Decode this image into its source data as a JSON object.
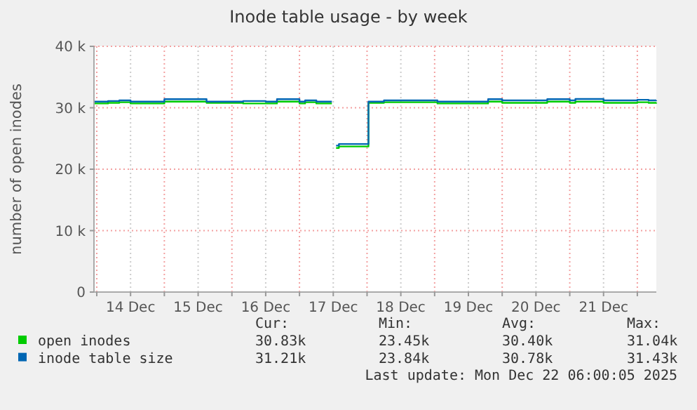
{
  "chart_data": {
    "type": "step",
    "title": "Inode table usage - by week",
    "ylabel": "number of open inodes",
    "x": [
      "2025-12-13T23:00",
      "2025-12-14T04:00",
      "2025-12-14T08:00",
      "2025-12-14T12:00",
      "2025-12-14T18:00",
      "2025-12-15T00:00",
      "2025-12-15T12:00",
      "2025-12-15T15:00",
      "2025-12-16T04:00",
      "2025-12-16T12:00",
      "2025-12-16T16:00",
      "2025-12-17T00:00",
      "2025-12-17T02:00",
      "2025-12-17T06:00",
      "2025-12-17T11:30",
      "2025-12-17T12:30",
      "2025-12-17T13:00",
      "2025-12-17T14:00",
      "2025-12-17T23:30",
      "2025-12-18T00:30",
      "2025-12-18T06:00",
      "2025-12-19T00:00",
      "2025-12-19T01:00",
      "2025-12-19T19:00",
      "2025-12-20T00:00",
      "2025-12-20T16:00",
      "2025-12-21T00:00",
      "2025-12-21T02:00",
      "2025-12-21T12:00",
      "2025-12-22T00:00",
      "2025-12-22T04:00",
      "2025-12-22T06:45"
    ],
    "series": [
      {
        "name": "open inodes",
        "color": "#00cc00",
        "values": [
          30.7,
          30.8,
          30.9,
          30.7,
          30.7,
          31.0,
          31.0,
          30.8,
          30.7,
          30.7,
          31.0,
          30.7,
          30.9,
          30.7,
          30.7,
          null,
          23.45,
          23.7,
          23.7,
          30.8,
          30.9,
          30.9,
          30.7,
          31.0,
          30.8,
          31.0,
          30.8,
          31.0,
          30.8,
          30.9,
          30.8,
          30.83
        ]
      },
      {
        "name": "inode table size",
        "color": "#0066b3",
        "values": [
          31.0,
          31.1,
          31.2,
          31.0,
          31.0,
          31.4,
          31.4,
          31.0,
          31.1,
          31.0,
          31.4,
          31.0,
          31.2,
          31.0,
          31.0,
          null,
          23.84,
          24.1,
          24.1,
          31.0,
          31.2,
          31.2,
          31.0,
          31.4,
          31.2,
          31.4,
          31.2,
          31.43,
          31.2,
          31.3,
          31.2,
          31.21
        ]
      }
    ],
    "xlim": [
      "2025-12-13T23:00",
      "2025-12-22T06:45"
    ],
    "xticks": [
      {
        "value": "2025-12-14T00:00",
        "label": null
      },
      {
        "value": "2025-12-14T12:00",
        "label": "14 Dec"
      },
      {
        "value": "2025-12-15T00:00",
        "label": null
      },
      {
        "value": "2025-12-15T12:00",
        "label": "15 Dec"
      },
      {
        "value": "2025-12-16T00:00",
        "label": null
      },
      {
        "value": "2025-12-16T12:00",
        "label": "16 Dec"
      },
      {
        "value": "2025-12-17T00:00",
        "label": null
      },
      {
        "value": "2025-12-17T12:00",
        "label": "17 Dec"
      },
      {
        "value": "2025-12-18T00:00",
        "label": null
      },
      {
        "value": "2025-12-18T12:00",
        "label": "18 Dec"
      },
      {
        "value": "2025-12-19T00:00",
        "label": null
      },
      {
        "value": "2025-12-19T12:00",
        "label": "19 Dec"
      },
      {
        "value": "2025-12-20T00:00",
        "label": null
      },
      {
        "value": "2025-12-20T12:00",
        "label": "20 Dec"
      },
      {
        "value": "2025-12-21T00:00",
        "label": null
      },
      {
        "value": "2025-12-21T12:00",
        "label": "21 Dec"
      },
      {
        "value": "2025-12-22T00:00",
        "label": null
      }
    ],
    "ylim": [
      0,
      40
    ],
    "yticks": [
      {
        "value": 0,
        "label": "0"
      },
      {
        "value": 10,
        "label": "10 k"
      },
      {
        "value": 20,
        "label": "20 k"
      },
      {
        "value": 30,
        "label": "30 k"
      },
      {
        "value": 40,
        "label": "40 k"
      }
    ],
    "grid": true,
    "legend": "bottom",
    "annotations": [
      "Cur:",
      "Min:",
      "Avg:",
      "Max:",
      "30.83k",
      "23.45k",
      "30.40k",
      "31.04k",
      "31.21k",
      "23.84k",
      "30.78k",
      "31.43k",
      "Last update: Mon Dec 22 06:00:05 2025"
    ]
  }
}
